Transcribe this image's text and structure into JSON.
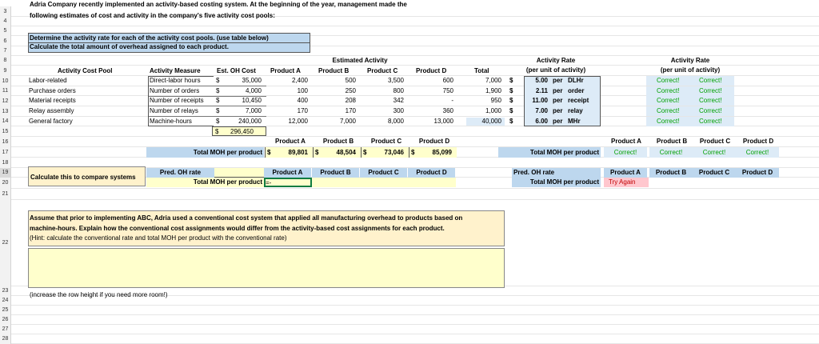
{
  "row_numbers": [
    "3",
    "4",
    "5",
    "6",
    "7",
    "8",
    "9",
    "10",
    "11",
    "12",
    "13",
    "14",
    "15",
    "16",
    "17",
    "18",
    "19",
    "20",
    "21",
    "22",
    "23",
    "24",
    "25",
    "26",
    "27",
    "28"
  ],
  "intro": {
    "line1": "Adria Company recently implemented an activity-based costing system. At the beginning of the year, management made the",
    "line2": "following estimates of cost and activity in the company's five activity cost pools:"
  },
  "instructions": {
    "line1": "Determine the activity rate for each of the activity cost pools. (use table below)",
    "line2": "Calculate the total amount of overhead assigned to each product."
  },
  "table": {
    "estimated_activity": "Estimated Activity",
    "headers": {
      "pool": "Activity Cost Pool",
      "measure": "Activity Measure",
      "cost": "Est. OH Cost",
      "a": "Product A",
      "b": "Product B",
      "c": "Product C",
      "d": "Product D",
      "total": "Total"
    },
    "rows": [
      {
        "pool": "Labor-related",
        "measure": "Direct-labor hours",
        "cur": "$",
        "cost": "35,000",
        "a": "2,400",
        "b": "500",
        "c": "3,500",
        "d": "600",
        "total": "7,000"
      },
      {
        "pool": "Purchase orders",
        "measure": "Number of orders",
        "cur": "$",
        "cost": "4,000",
        "a": "100",
        "b": "250",
        "c": "800",
        "d": "750",
        "total": "1,900"
      },
      {
        "pool": "Material receipts",
        "measure": "Number of receipts",
        "cur": "$",
        "cost": "10,450",
        "a": "400",
        "b": "208",
        "c": "342",
        "d": "-",
        "total": "950"
      },
      {
        "pool": "Relay assembly",
        "measure": "Number of relays",
        "cur": "$",
        "cost": "7,000",
        "a": "170",
        "b": "170",
        "c": "300",
        "d": "360",
        "total": "1,000"
      },
      {
        "pool": "General factory",
        "measure": "Machine-hours",
        "cur": "$",
        "cost": "240,000",
        "a": "12,000",
        "b": "7,000",
        "c": "8,000",
        "d": "13,000",
        "total": "40,000"
      }
    ],
    "cost_total_cur": "$",
    "cost_total": "296,450"
  },
  "rates": {
    "header1": "Activity Rate",
    "header2": "(per unit of activity)",
    "rows": [
      {
        "cur": "$",
        "value": "5.00",
        "per": "per",
        "unit": "DLHr"
      },
      {
        "cur": "$",
        "value": "2.11",
        "per": "per",
        "unit": "order"
      },
      {
        "cur": "$",
        "value": "11.00",
        "per": "per",
        "unit": "receipt"
      },
      {
        "cur": "$",
        "value": "7.00",
        "per": "per",
        "unit": "relay"
      },
      {
        "cur": "$",
        "value": "6.00",
        "per": "per",
        "unit": "MHr"
      }
    ]
  },
  "check_rates": {
    "header1": "Activity Rate",
    "header2": "(per unit of activity)",
    "rows": [
      [
        "Correct!",
        "Correct!"
      ],
      [
        "Correct!",
        "Correct!"
      ],
      [
        "Correct!",
        "Correct!"
      ],
      [
        "Correct!",
        "Correct!"
      ],
      [
        "Correct!",
        "Correct!"
      ]
    ]
  },
  "moh": {
    "headers": [
      "Product A",
      "Product B",
      "Product C",
      "Product D"
    ],
    "label": "Total MOH per product",
    "values": [
      {
        "cur": "$",
        "value": "89,801"
      },
      {
        "cur": "$",
        "value": "48,504"
      },
      {
        "cur": "$",
        "value": "73,046"
      },
      {
        "cur": "$",
        "value": "85,099"
      }
    ]
  },
  "moh_check": {
    "label": "Total MOH per product",
    "headers": [
      "Product A",
      "Product B",
      "Product C",
      "Product D"
    ],
    "values": [
      "Correct!",
      "Correct!",
      "Correct!",
      "Correct!"
    ]
  },
  "compare": {
    "label": "Calculate this to compare systems",
    "pred_oh_rate": "Pred. OH rate",
    "total_moh": "Total MOH per product",
    "input_value": "=-",
    "headers": [
      "Product A",
      "Product B",
      "Product C",
      "Product D"
    ]
  },
  "compare_check": {
    "pred_oh_rate": "Pred. OH rate",
    "total_moh": "Total MOH per product",
    "headers": [
      "Product A",
      "Product B",
      "Product C",
      "Product D"
    ],
    "try_again": "Try Again"
  },
  "question": {
    "line1": "Assume that prior to implementing ABC, Adria used a conventional cost system that applied all manufacturing overhead to products based on",
    "line2": "machine-hours. Explain how the conventional cost assignments would differ from the activity-based cost assignments for each product.",
    "line3": "(Hint: calculate the conventional rate and total MOH per product with the conventional rate)"
  },
  "note": "(increase the row height if you need more room!)",
  "colors": {
    "correct": "#00a000",
    "try_again_bg": "#ffc7ce",
    "header_blue": "#bdd7ee",
    "answer_yellow": "#ffffcc"
  }
}
